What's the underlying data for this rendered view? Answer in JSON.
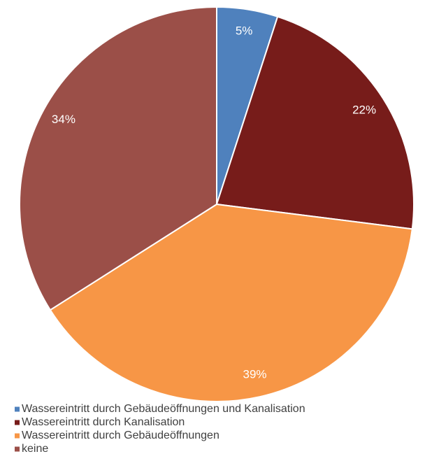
{
  "chart_data": {
    "type": "pie",
    "categories": [
      "Wassereintritt durch Gebäudeöffnungen und Kanalisation",
      "Wassereintritt durch Kanalisation",
      "Wassereintritt durch Gebäudeöffnungen",
      "keine"
    ],
    "values": [
      5,
      22,
      39,
      34
    ],
    "value_labels": [
      "5%",
      "22%",
      "39%",
      "34%"
    ],
    "colors": [
      "#4f81bd",
      "#771c1a",
      "#f79646",
      "#9b4f48"
    ],
    "legend": "bottom-left"
  }
}
